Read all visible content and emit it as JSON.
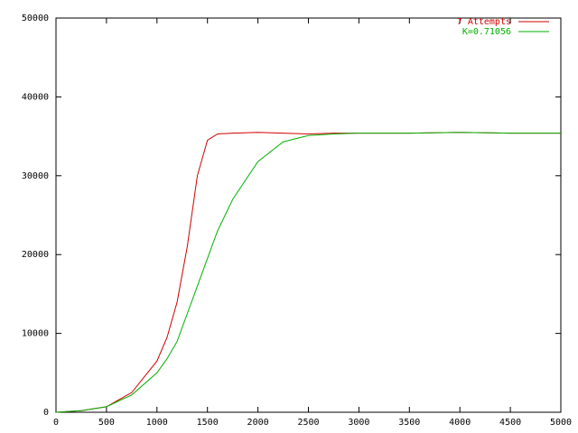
{
  "chart_data": {
    "type": "line",
    "x": [
      0,
      250,
      500,
      750,
      1000,
      1100,
      1200,
      1300,
      1400,
      1500,
      1600,
      1750,
      2000,
      2250,
      2500,
      2750,
      3000,
      3500,
      4000,
      4500,
      5000
    ],
    "series": [
      {
        "name": "7 Attempts",
        "color": "#d00000",
        "values": [
          0,
          200,
          700,
          2500,
          6500,
          9500,
          14000,
          21000,
          30000,
          34500,
          35300,
          35400,
          35500,
          35400,
          35300,
          35400,
          35400,
          35400,
          35500,
          35400,
          35400
        ]
      },
      {
        "name": "K=0.71056",
        "color": "#00b000",
        "values": [
          0,
          200,
          700,
          2200,
          5000,
          6800,
          9000,
          12500,
          16000,
          19500,
          23000,
          27000,
          31800,
          34300,
          35100,
          35300,
          35400,
          35400,
          35500,
          35400,
          35400
        ]
      }
    ],
    "xlim": [
      0,
      5000
    ],
    "xticks": [
      0,
      500,
      1000,
      1500,
      2000,
      2500,
      3000,
      3500,
      4000,
      4500,
      5000
    ],
    "ylim": [
      0,
      50000
    ],
    "yticks": [
      0,
      10000,
      20000,
      30000,
      40000,
      50000
    ],
    "grid": false,
    "legend": "top-right"
  }
}
